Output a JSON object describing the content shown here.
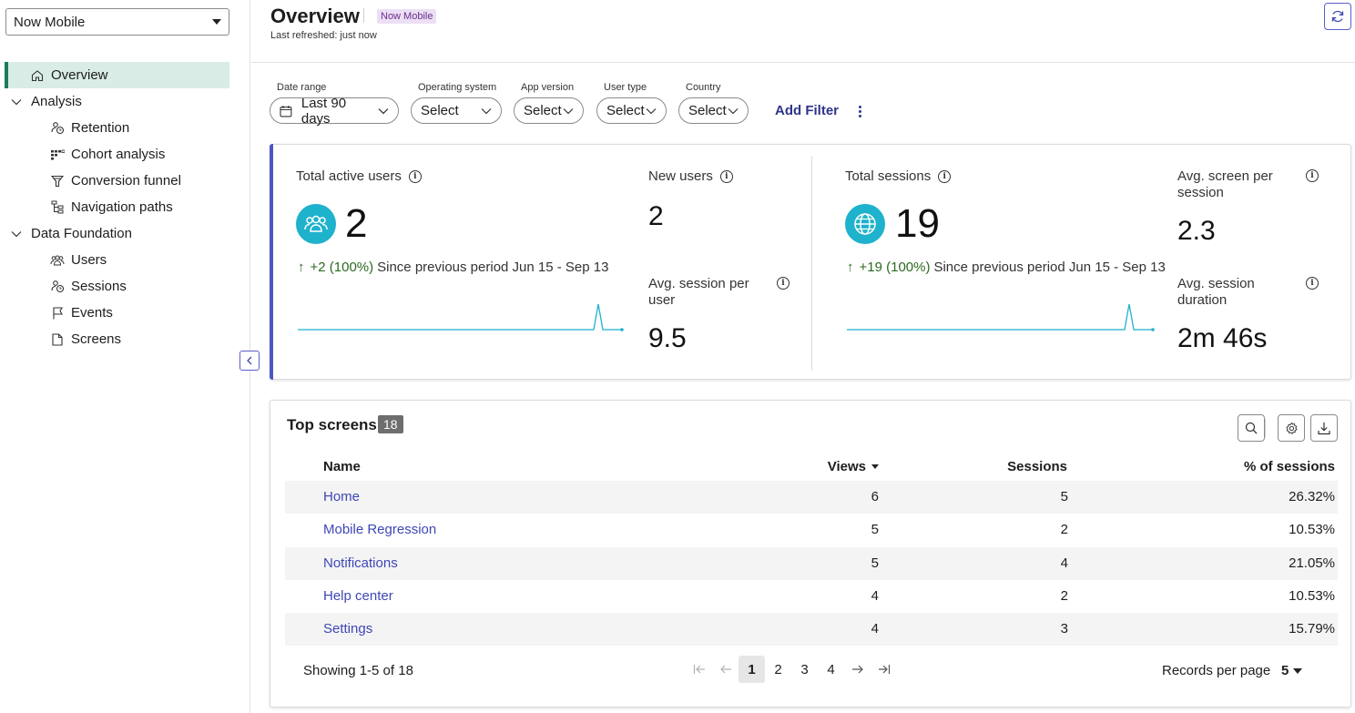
{
  "sidebar": {
    "app_selector": "Now Mobile",
    "items": [
      {
        "label": "Overview",
        "icon": "home-icon",
        "active": true
      },
      {
        "label": "Analysis",
        "icon": "chevron-down-icon",
        "group": true
      },
      {
        "label": "Retention",
        "icon": "retention-icon"
      },
      {
        "label": "Cohort analysis",
        "icon": "cohort-icon"
      },
      {
        "label": "Conversion funnel",
        "icon": "funnel-icon"
      },
      {
        "label": "Navigation paths",
        "icon": "navigation-paths-icon"
      },
      {
        "label": "Data Foundation",
        "icon": "chevron-down-icon",
        "group": true
      },
      {
        "label": "Users",
        "icon": "users-icon"
      },
      {
        "label": "Sessions",
        "icon": "sessions-icon"
      },
      {
        "label": "Events",
        "icon": "flag-icon"
      },
      {
        "label": "Screens",
        "icon": "document-icon"
      }
    ]
  },
  "header": {
    "title": "Overview",
    "app_badge": "Now Mobile",
    "refreshed": "Last refreshed: just now"
  },
  "filters": {
    "date_range": {
      "label": "Date range",
      "value": "Last 90 days"
    },
    "os": {
      "label": "Operating system",
      "value": "Select"
    },
    "app_version": {
      "label": "App version",
      "value": "Select"
    },
    "user_type": {
      "label": "User type",
      "value": "Select"
    },
    "country": {
      "label": "Country",
      "value": "Select"
    },
    "add_filter": "Add Filter"
  },
  "metrics": {
    "total_active_users": {
      "label": "Total active users",
      "value": "2",
      "delta": "+2 (100%)",
      "since": "Since previous period Jun 15 - Sep 13"
    },
    "new_users": {
      "label": "New users",
      "value": "2"
    },
    "avg_session_per_user": {
      "label_line1": "Avg. session per",
      "label_line2": "user",
      "value": "9.5"
    },
    "total_sessions": {
      "label": "Total sessions",
      "value": "19",
      "delta": "+19 (100%)",
      "since": "Since previous period Jun 15 - Sep 13"
    },
    "avg_screen_per_session": {
      "label_line1": "Avg. screen per",
      "label_line2": "session",
      "value": "2.3"
    },
    "avg_session_duration": {
      "label_line1": "Avg. session",
      "label_line2": "duration",
      "value": "2m 46s"
    },
    "accent_color": "#1eb2cc"
  },
  "top_screens": {
    "title": "Top screens",
    "count": "18",
    "columns": {
      "name": "Name",
      "views": "Views",
      "sessions": "Sessions",
      "pct": "% of sessions"
    },
    "rows": [
      {
        "name": "Home",
        "views": "6",
        "sessions": "5",
        "pct": "26.32%"
      },
      {
        "name": "Mobile Regression",
        "views": "5",
        "sessions": "2",
        "pct": "10.53%"
      },
      {
        "name": "Notifications",
        "views": "5",
        "sessions": "4",
        "pct": "21.05%"
      },
      {
        "name": "Help center",
        "views": "4",
        "sessions": "2",
        "pct": "10.53%"
      },
      {
        "name": "Settings",
        "views": "4",
        "sessions": "3",
        "pct": "15.79%"
      }
    ],
    "showing": "Showing 1-5 of 18",
    "pages": [
      "1",
      "2",
      "3",
      "4"
    ],
    "current_page": "1",
    "records_per_page_label": "Records per page",
    "records_per_page": "5"
  }
}
